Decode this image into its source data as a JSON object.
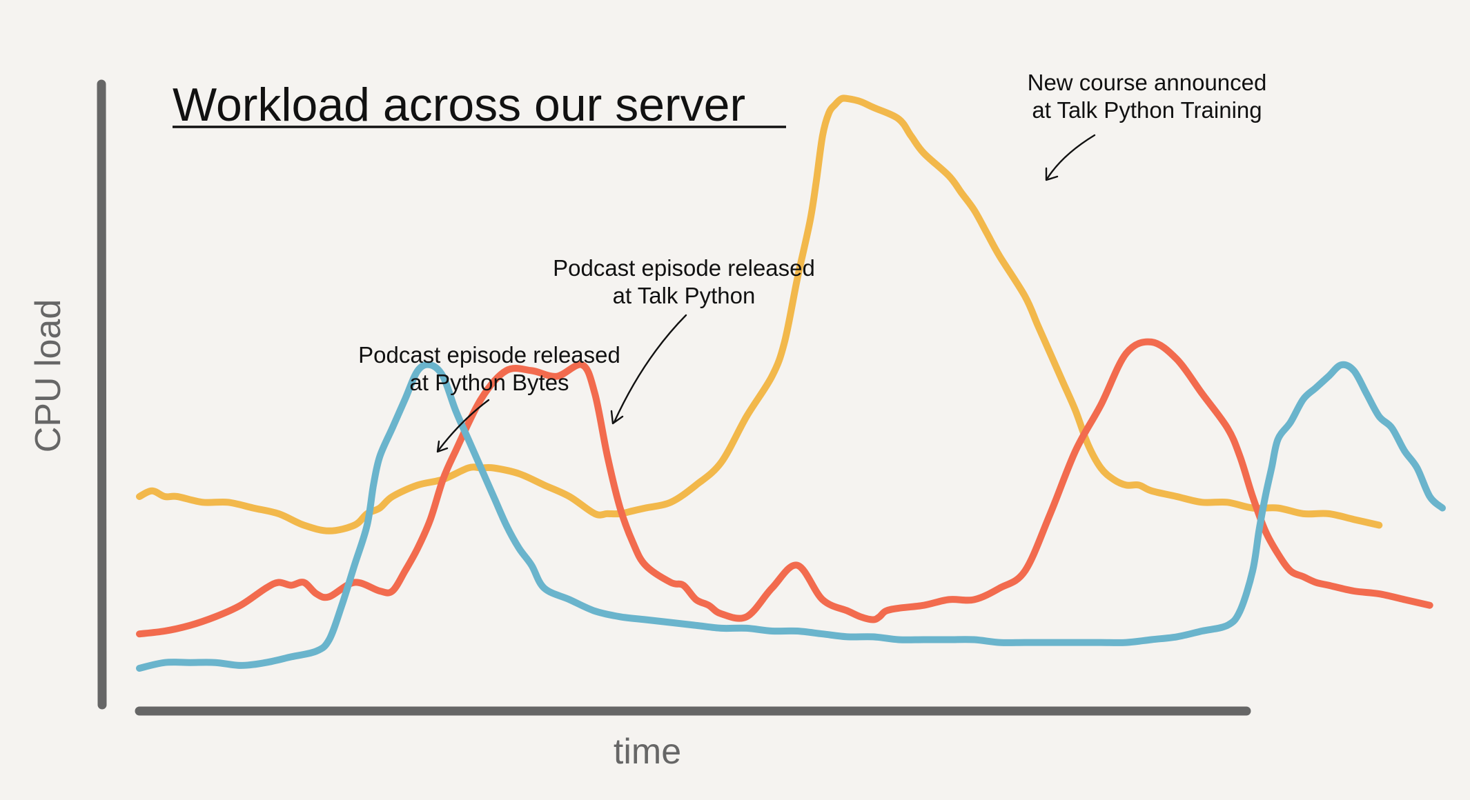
{
  "chart_data": {
    "type": "line",
    "title": "Workload across our server",
    "xlabel": "time",
    "ylabel": "CPU load",
    "xlim": [
      0,
      100
    ],
    "ylim": [
      0,
      100
    ],
    "grid": false,
    "legend": "none",
    "series": [
      {
        "color": "#f2b84b",
        "x": [
          0,
          1,
          2,
          3,
          5,
          7,
          9,
          11,
          13,
          15,
          17,
          18,
          19,
          20,
          22,
          24,
          26,
          27,
          28,
          30,
          32,
          34,
          36,
          37,
          38,
          39,
          40,
          42,
          44,
          46,
          48,
          50,
          51,
          52,
          53,
          53.5,
          54,
          54.5,
          55,
          55.5,
          56,
          57,
          58,
          60,
          61,
          62,
          64,
          65,
          66,
          67,
          68,
          70,
          71,
          72,
          73,
          74,
          75,
          76,
          77,
          78,
          79,
          80,
          82,
          84,
          86,
          88,
          90,
          92,
          94,
          96,
          98
        ],
        "y": [
          30,
          31,
          30,
          30,
          29,
          29,
          28,
          27,
          25,
          24,
          25,
          27,
          28,
          30,
          32,
          33,
          35,
          35,
          35,
          34,
          32,
          30,
          27,
          27,
          27,
          27.5,
          28,
          29,
          32,
          36,
          44,
          51,
          57,
          68,
          78,
          85,
          93,
          97,
          98.5,
          99.5,
          99.5,
          99,
          98,
          96,
          93,
          90,
          86,
          83,
          80,
          76,
          72,
          65,
          60,
          55,
          50,
          45,
          39,
          35,
          33,
          32,
          32,
          31,
          30,
          29,
          29,
          28,
          28,
          27,
          27,
          26,
          25
        ]
      },
      {
        "color": "#f26b4e",
        "x": [
          0,
          2,
          4,
          6,
          8,
          10,
          11,
          12,
          13,
          14,
          15,
          17,
          19,
          20,
          21,
          22,
          23,
          24,
          25,
          27,
          29,
          31,
          33,
          35,
          36,
          37,
          38,
          39,
          40,
          42,
          43,
          44,
          45,
          46,
          48,
          50,
          52,
          54,
          56,
          57,
          58,
          58.5,
          59,
          60,
          62,
          64,
          66,
          68,
          70,
          72,
          74,
          76,
          78,
          80,
          82,
          84,
          86,
          87,
          88,
          89,
          90,
          91,
          92,
          93,
          94,
          96,
          98,
          100,
          102
        ],
        "y": [
          6,
          6.5,
          7.5,
          9,
          11,
          14,
          15,
          14.5,
          15,
          13,
          12.5,
          15,
          13.5,
          13.5,
          17,
          21,
          26,
          33,
          38,
          47,
          52,
          52,
          51,
          53,
          48,
          37,
          28,
          22,
          18,
          15,
          14.5,
          12,
          11,
          9.5,
          9,
          14,
          18,
          12,
          10,
          9,
          8.5,
          9,
          10,
          10.5,
          11,
          12,
          12,
          14,
          17,
          27,
          38,
          46,
          55,
          57,
          54,
          48,
          42,
          37,
          30,
          24,
          20,
          17,
          16,
          15,
          14.5,
          13.5,
          13,
          12,
          11
        ]
      },
      {
        "color": "#6ab4cc",
        "x": [
          0,
          2,
          4,
          6,
          8,
          10,
          12,
          14,
          15,
          16,
          17,
          18,
          18.5,
          19,
          20,
          21,
          22,
          23,
          24,
          25,
          26,
          27,
          28,
          29,
          30,
          31,
          32,
          34,
          36,
          38,
          40,
          42,
          44,
          46,
          48,
          50,
          52,
          54,
          56,
          58,
          60,
          62,
          64,
          66,
          68,
          70,
          72,
          74,
          76,
          78,
          80,
          82,
          84,
          86,
          87,
          88,
          88.5,
          89,
          89.5,
          90,
          91,
          92,
          93,
          94,
          95,
          96,
          97,
          98,
          99,
          100,
          101,
          102,
          103
        ],
        "y": [
          0,
          1,
          1,
          1,
          0.5,
          1,
          2,
          3,
          5,
          11,
          18,
          25,
          32,
          37,
          42,
          47,
          52,
          53,
          51,
          45,
          40,
          35,
          30,
          25,
          21,
          18,
          14,
          12,
          10,
          9,
          8.5,
          8,
          7.5,
          7,
          7,
          6.5,
          6.5,
          6,
          5.5,
          5.5,
          5,
          5,
          5,
          5,
          4.5,
          4.5,
          4.5,
          4.5,
          4.5,
          4.5,
          5,
          5.5,
          6.5,
          7.5,
          10,
          17,
          24,
          30,
          35,
          40,
          43,
          47,
          49,
          51,
          53,
          52,
          48,
          44,
          42,
          38,
          35,
          30,
          28
        ]
      }
    ],
    "annotations": [
      {
        "lines": [
          "Podcast episode released",
          "at Python Bytes"
        ]
      },
      {
        "lines": [
          "Podcast episode released",
          "at Talk Python"
        ]
      },
      {
        "lines": [
          "New course announced",
          "at Talk Python Training"
        ]
      }
    ]
  }
}
